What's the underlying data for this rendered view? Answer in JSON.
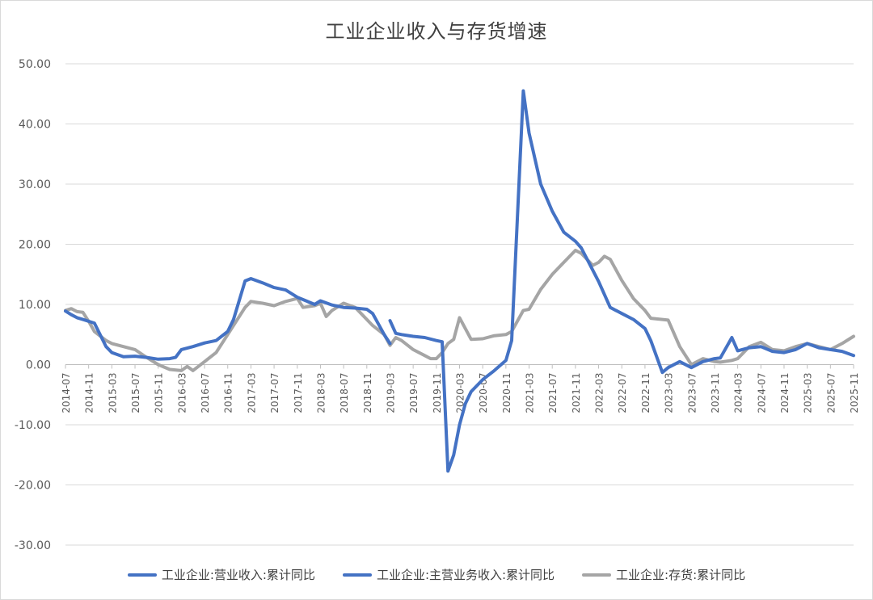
{
  "chart_data": {
    "type": "line",
    "title": "工业企业收入与存货增速",
    "xlabel": "",
    "ylabel": "",
    "ylim": [
      -30,
      50
    ],
    "y_ticks": [
      "50.00",
      "40.00",
      "30.00",
      "20.00",
      "10.00",
      "0.00",
      "-10.00",
      "-20.00",
      "-30.00"
    ],
    "x_tick_labels": [
      "2014-07",
      "2014-11",
      "2015-03",
      "2015-07",
      "2015-11",
      "2016-03",
      "2016-07",
      "2016-11",
      "2017-03",
      "2017-07",
      "2017-11",
      "2018-03",
      "2018-07",
      "2018-11",
      "2019-03",
      "2019-07",
      "2019-11",
      "2020-03",
      "2020-07",
      "2020-11",
      "2021-03",
      "2021-07",
      "2021-11",
      "2022-03",
      "2022-07",
      "2022-11",
      "2023-03",
      "2023-07",
      "2023-11",
      "2024-03",
      "2024-07",
      "2024-11",
      "2025-03",
      "2025-07",
      "2025-11"
    ],
    "x_start": "2014-07",
    "grid": true,
    "legend_position": "bottom",
    "series": [
      {
        "name": "工业企业:营业收入:累计同比",
        "color": "#4472c4",
        "x": [
          "2014-07",
          "2014-08",
          "2014-09",
          "2014-10",
          "2014-11",
          "2014-12",
          "2015-02",
          "2015-03",
          "2015-05",
          "2015-07",
          "2015-09",
          "2015-11",
          "2016-01",
          "2016-02",
          "2016-03",
          "2016-05",
          "2016-07",
          "2016-09",
          "2016-11",
          "2016-12",
          "2017-02",
          "2017-03",
          "2017-05",
          "2017-07",
          "2017-09",
          "2017-11",
          "2017-12",
          "2018-02",
          "2018-03",
          "2018-05",
          "2018-07",
          "2018-09",
          "2018-11",
          "2018-12",
          "2019-02",
          "2019-03"
        ],
        "values": [
          8.9,
          8.3,
          7.8,
          7.5,
          7.2,
          6.9,
          3.0,
          2.0,
          1.3,
          1.4,
          1.2,
          0.9,
          1.0,
          1.2,
          2.5,
          3.0,
          3.6,
          4.0,
          5.5,
          7.5,
          13.9,
          14.3,
          13.6,
          12.8,
          12.4,
          11.2,
          10.8,
          10.0,
          10.6,
          9.9,
          9.5,
          9.4,
          9.2,
          8.5,
          5.0,
          3.5
        ]
      },
      {
        "name": "工业企业:主营业务收入:累计同比",
        "color": "#4472c4",
        "x": [
          "2019-03",
          "2019-04",
          "2019-05",
          "2019-07",
          "2019-09",
          "2019-11",
          "2019-12",
          "2020-01",
          "2020-02",
          "2020-03",
          "2020-04",
          "2020-05",
          "2020-07",
          "2020-09",
          "2020-11",
          "2020-12",
          "2021-02",
          "2021-03",
          "2021-05",
          "2021-07",
          "2021-09",
          "2021-11",
          "2021-12",
          "2022-03",
          "2022-05",
          "2022-07",
          "2022-09",
          "2022-11",
          "2022-12",
          "2023-02",
          "2023-03",
          "2023-05",
          "2023-07",
          "2023-09",
          "2023-11",
          "2023-12",
          "2024-02",
          "2024-03",
          "2024-05",
          "2024-07",
          "2024-09",
          "2024-11",
          "2025-01",
          "2025-03",
          "2025-05",
          "2025-07",
          "2025-09",
          "2025-11"
        ],
        "values": [
          7.3,
          5.2,
          5.0,
          4.7,
          4.5,
          4.0,
          3.8,
          -17.7,
          -15.0,
          -10.0,
          -6.5,
          -4.5,
          -2.5,
          -1.0,
          0.7,
          4.0,
          45.5,
          38.5,
          30.0,
          25.5,
          22.0,
          20.5,
          19.4,
          13.8,
          9.5,
          8.5,
          7.5,
          6.0,
          4.0,
          -1.3,
          -0.5,
          0.5,
          -0.5,
          0.5,
          1.0,
          1.1,
          4.5,
          2.3,
          2.8,
          3.0,
          2.2,
          2.0,
          2.5,
          3.5,
          2.8,
          2.5,
          2.2,
          1.5
        ]
      },
      {
        "name": "工业企业:存货:累计同比",
        "color": "#a5a5a5",
        "x": [
          "2014-07",
          "2014-08",
          "2014-09",
          "2014-10",
          "2014-11",
          "2014-12",
          "2015-02",
          "2015-03",
          "2015-05",
          "2015-07",
          "2015-09",
          "2015-11",
          "2016-01",
          "2016-03",
          "2016-04",
          "2016-05",
          "2016-07",
          "2016-09",
          "2016-11",
          "2016-12",
          "2017-02",
          "2017-03",
          "2017-05",
          "2017-07",
          "2017-09",
          "2017-11",
          "2017-12",
          "2018-02",
          "2018-03",
          "2018-04",
          "2018-05",
          "2018-07",
          "2018-09",
          "2018-11",
          "2018-12",
          "2019-02",
          "2019-03",
          "2019-04",
          "2019-05",
          "2019-07",
          "2019-09",
          "2019-10",
          "2019-11",
          "2019-12",
          "2020-01",
          "2020-02",
          "2020-03",
          "2020-05",
          "2020-07",
          "2020-09",
          "2020-11",
          "2020-12",
          "2021-02",
          "2021-03",
          "2021-05",
          "2021-07",
          "2021-09",
          "2021-11",
          "2021-12",
          "2022-02",
          "2022-03",
          "2022-04",
          "2022-05",
          "2022-07",
          "2022-09",
          "2022-11",
          "2022-12",
          "2023-02",
          "2023-03",
          "2023-05",
          "2023-07",
          "2023-09",
          "2023-11",
          "2023-12",
          "2024-02",
          "2024-03",
          "2024-05",
          "2024-07",
          "2024-09",
          "2024-11",
          "2025-01",
          "2025-03",
          "2025-05",
          "2025-07",
          "2025-09",
          "2025-11"
        ],
        "values": [
          9.0,
          9.3,
          8.8,
          8.7,
          7.2,
          5.5,
          4.0,
          3.5,
          3.0,
          2.5,
          1.2,
          0.0,
          -0.8,
          -1.0,
          -0.3,
          -1.0,
          0.5,
          2.0,
          5.0,
          6.5,
          9.5,
          10.5,
          10.2,
          9.8,
          10.5,
          11.0,
          9.5,
          9.8,
          10.2,
          8.0,
          9.0,
          10.2,
          9.5,
          7.5,
          6.5,
          5.0,
          3.2,
          4.5,
          4.0,
          2.5,
          1.5,
          1.0,
          1.0,
          2.0,
          3.5,
          4.2,
          7.8,
          4.2,
          4.3,
          4.8,
          5.0,
          5.5,
          9.0,
          9.2,
          12.5,
          15.0,
          17.0,
          19.0,
          18.5,
          16.5,
          17.0,
          18.0,
          17.5,
          14.0,
          11.0,
          9.0,
          7.7,
          7.5,
          7.4,
          3.0,
          0.0,
          1.0,
          0.5,
          0.4,
          0.7,
          1.0,
          3.0,
          3.7,
          2.5,
          2.3,
          3.0,
          3.5,
          3.0,
          2.5,
          3.5,
          4.7
        ]
      }
    ]
  }
}
